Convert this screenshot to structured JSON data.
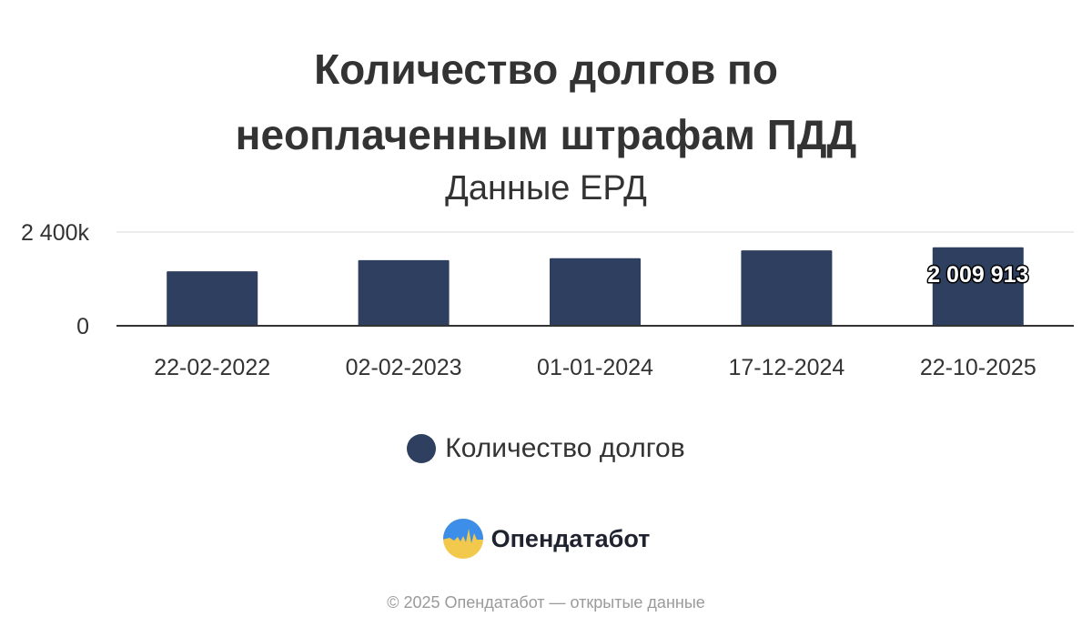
{
  "colors": {
    "series": "#2e3f5f",
    "grid": "#e6e6e6",
    "axis": "#333333",
    "text": "#333333",
    "footer": "#9a9a9a"
  },
  "chart_data": {
    "type": "bar",
    "title_lines": [
      "Количество долгов по",
      "неоплаченным штрафам ПДД"
    ],
    "subtitle": "Данные ЕРД",
    "categories": [
      "22-02-2022",
      "02-02-2023",
      "01-01-2024",
      "17-12-2024",
      "22-10-2025"
    ],
    "series": [
      {
        "name": "Количество долгов",
        "values": [
          1395000,
          1680000,
          1730000,
          1930000,
          2009913
        ],
        "data_labels": [
          "",
          "",
          "",
          "",
          "2 009 913"
        ]
      }
    ],
    "yticks": [
      {
        "value": 0,
        "label": "0"
      },
      {
        "value": 2400000,
        "label": "2 400k"
      }
    ],
    "ylim": [
      0,
      2400000
    ],
    "grid": true,
    "legend": "bottom-center"
  },
  "brand": {
    "name": "Опендатабот",
    "logo_icon": "opendatabot-logo-icon"
  },
  "footer": {
    "text": "© 2025 Опендатабот — открытые данные"
  }
}
